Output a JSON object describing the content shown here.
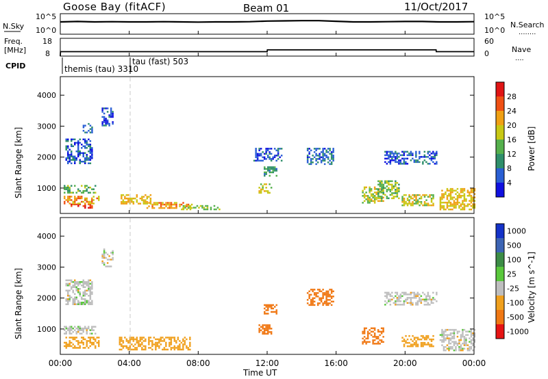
{
  "header": {
    "station": "Goose Bay (fitACF)",
    "beam": "Beam 01",
    "date": "11/Oct/2017"
  },
  "panels": {
    "noise": {
      "left_label": "N.Sky",
      "right_label": "N.Search",
      "left_ticks": [
        "10^5",
        "10^0"
      ],
      "right_ticks": [
        "10^5",
        "10^0"
      ],
      "legend_dots": "........"
    },
    "freq": {
      "left_label_1": "Freq.",
      "left_label_2": "[MHz]",
      "right_label": "Nave",
      "left_ticks": [
        "18",
        "8"
      ],
      "right_ticks": [
        "60",
        "0"
      ],
      "legend_dots": "...."
    },
    "cpid": {
      "label": "CPID",
      "programs": [
        "themis (tau) 3310",
        "tau (fast) 503"
      ],
      "switch_time_hours": 4.0
    },
    "power": {
      "y_label": "Slant Range [km]",
      "y_ticks": [
        "1000",
        "2000",
        "3000",
        "4000"
      ],
      "colorbar_label": "Power [dB]",
      "colorbar_ticks": [
        "4",
        "8",
        "12",
        "16",
        "20",
        "24",
        "28"
      ],
      "colorbar_colors": [
        "#1010e0",
        "#2a5fd4",
        "#2f8f6b",
        "#55b04c",
        "#c8c814",
        "#f0a014",
        "#f05014",
        "#e01414"
      ]
    },
    "velocity": {
      "y_label": "Slant Range [km]",
      "y_ticks": [
        "1000",
        "2000",
        "3000",
        "4000"
      ],
      "colorbar_label": "Velocity [m s^-1]",
      "colorbar_ticks": [
        "1000",
        "500",
        "100",
        "25",
        "-25",
        "-100",
        "-500",
        "-1000"
      ],
      "colorbar_colors": [
        "#1432c8",
        "#3c64b4",
        "#3c8c46",
        "#5ac83c",
        "#bebebe",
        "#f0a01e",
        "#f07814",
        "#e61414"
      ]
    },
    "x_axis": {
      "label": "Time UT",
      "ticks": [
        "00:00",
        "04:00",
        "08:00",
        "12:00",
        "16:00",
        "20:00",
        "00:00"
      ]
    }
  },
  "chart_data": [
    {
      "type": "line",
      "series": [
        {
          "name": "N.Sky",
          "x": [
            0,
            1,
            2,
            3,
            4,
            5,
            6,
            7,
            8,
            9,
            10,
            11,
            12,
            13,
            14,
            15,
            16,
            17,
            18,
            19,
            20,
            21,
            22,
            23,
            24
          ],
          "y": [
            0.6,
            0.62,
            0.6,
            0.61,
            0.6,
            0.6,
            0.61,
            0.6,
            0.59,
            0.6,
            0.6,
            0.61,
            0.64,
            0.65,
            0.66,
            0.66,
            0.63,
            0.6,
            0.6,
            0.61,
            0.62,
            0.62,
            0.6,
            0.6,
            0.61
          ]
        }
      ],
      "ylim": [
        0,
        1
      ]
    },
    {
      "type": "line",
      "series": [
        {
          "name": "Freq.",
          "x": [
            0,
            0.01,
            4,
            8,
            12,
            12.01,
            16,
            20,
            21.8,
            21.81,
            24
          ],
          "y": [
            8,
            10.5,
            10.5,
            10.5,
            10.5,
            11.5,
            11.5,
            11.5,
            11.5,
            10.5,
            10.5
          ]
        }
      ],
      "ylim": [
        8,
        18
      ]
    },
    {
      "type": "heatmap",
      "title": "Power [dB]",
      "xlabel": "Time UT",
      "ylabel": "Slant Range [km]",
      "xlim": [
        0,
        24
      ],
      "ylim": [
        180,
        4600
      ],
      "regions": [
        {
          "t0": 0.6,
          "t1": 1.8,
          "r0": 380,
          "r1": 500,
          "value": 29
        },
        {
          "t0": 0.2,
          "t1": 2.2,
          "r0": 500,
          "r1": 750,
          "value": 22
        },
        {
          "t0": 0.2,
          "t1": 2.0,
          "r0": 850,
          "r1": 1100,
          "value": 14
        },
        {
          "t0": 0.3,
          "t1": 1.8,
          "r0": 1800,
          "r1": 2600,
          "value": 6
        },
        {
          "t0": 1.3,
          "t1": 1.8,
          "r0": 2800,
          "r1": 3100,
          "value": 6
        },
        {
          "t0": 2.4,
          "t1": 3.0,
          "r0": 3000,
          "r1": 3600,
          "value": 5
        },
        {
          "t0": 3.4,
          "t1": 5.2,
          "r0": 500,
          "r1": 800,
          "value": 20
        },
        {
          "t0": 5.0,
          "t1": 7.6,
          "r0": 330,
          "r1": 550,
          "value": 22
        },
        {
          "t0": 7.0,
          "t1": 9.2,
          "r0": 300,
          "r1": 450,
          "value": 16
        },
        {
          "t0": 11.5,
          "t1": 12.2,
          "r0": 850,
          "r1": 1150,
          "value": 18
        },
        {
          "t0": 11.8,
          "t1": 12.5,
          "r0": 1400,
          "r1": 1700,
          "value": 11
        },
        {
          "t0": 11.2,
          "t1": 12.8,
          "r0": 1900,
          "r1": 2300,
          "value": 6
        },
        {
          "t0": 14.3,
          "t1": 15.8,
          "r0": 1750,
          "r1": 2300,
          "value": 7
        },
        {
          "t0": 17.5,
          "t1": 18.7,
          "r0": 550,
          "r1": 1050,
          "value": 18
        },
        {
          "t0": 18.8,
          "t1": 21.8,
          "r0": 1800,
          "r1": 2200,
          "value": 6
        },
        {
          "t0": 18.4,
          "t1": 19.6,
          "r0": 650,
          "r1": 1250,
          "value": 15
        },
        {
          "t0": 19.8,
          "t1": 21.6,
          "r0": 450,
          "r1": 800,
          "value": 18
        },
        {
          "t0": 22.0,
          "t1": 24.0,
          "r0": 300,
          "r1": 1000,
          "value": 20
        }
      ]
    },
    {
      "type": "heatmap",
      "title": "Velocity [m s^-1]",
      "xlabel": "Time UT",
      "ylabel": "Slant Range [km]",
      "xlim": [
        0,
        24
      ],
      "ylim": [
        180,
        4600
      ],
      "regions": [
        {
          "t0": 0.2,
          "t1": 2.2,
          "r0": 400,
          "r1": 750,
          "value": -100
        },
        {
          "t0": 0.2,
          "t1": 2.0,
          "r0": 850,
          "r1": 1100,
          "value": 0
        },
        {
          "t0": 0.3,
          "t1": 1.8,
          "r0": 1800,
          "r1": 2600,
          "value": 0
        },
        {
          "t0": 2.4,
          "t1": 3.0,
          "r0": 3000,
          "r1": 3600,
          "value": 0
        },
        {
          "t0": 3.4,
          "t1": 7.6,
          "r0": 330,
          "r1": 750,
          "value": -100
        },
        {
          "t0": 11.5,
          "t1": 12.2,
          "r0": 850,
          "r1": 1150,
          "value": -300
        },
        {
          "t0": 11.8,
          "t1": 12.5,
          "r0": 1500,
          "r1": 1800,
          "value": -300
        },
        {
          "t0": 14.3,
          "t1": 15.8,
          "r0": 1750,
          "r1": 2300,
          "value": -400
        },
        {
          "t0": 17.5,
          "t1": 18.7,
          "r0": 550,
          "r1": 1050,
          "value": -300
        },
        {
          "t0": 18.8,
          "t1": 21.8,
          "r0": 1800,
          "r1": 2200,
          "value": 0
        },
        {
          "t0": 19.8,
          "t1": 21.6,
          "r0": 450,
          "r1": 800,
          "value": -100
        },
        {
          "t0": 22.0,
          "t1": 24.0,
          "r0": 300,
          "r1": 1000,
          "value": 0
        }
      ]
    }
  ]
}
